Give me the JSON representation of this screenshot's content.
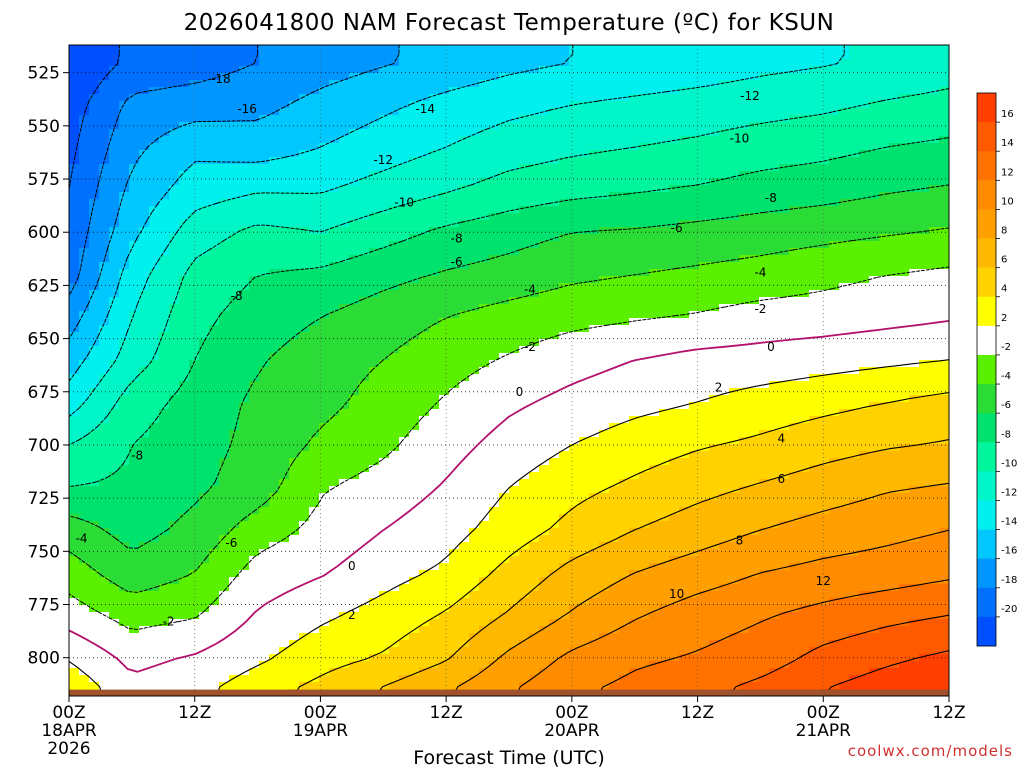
{
  "chart_data": {
    "type": "heatmap",
    "title": "2026041800 NAM Forecast Temperature (ºC) for KSUN",
    "xlabel": "Forecast Time (UTC)",
    "ylabel": "",
    "x_range_hours": [
      0,
      84
    ],
    "y_range_hpa": [
      512,
      818
    ],
    "y_ticks": [
      525,
      550,
      575,
      600,
      625,
      650,
      675,
      700,
      725,
      750,
      775,
      800
    ],
    "x_ticks": [
      {
        "hour": 0,
        "label": "00Z",
        "sub": "18APR",
        "sub2": "2026"
      },
      {
        "hour": 12,
        "label": "12Z",
        "sub": "",
        "sub2": ""
      },
      {
        "hour": 24,
        "label": "00Z",
        "sub": "19APR",
        "sub2": ""
      },
      {
        "hour": 36,
        "label": "12Z",
        "sub": "",
        "sub2": ""
      },
      {
        "hour": 48,
        "label": "00Z",
        "sub": "20APR",
        "sub2": ""
      },
      {
        "hour": 60,
        "label": "12Z",
        "sub": "",
        "sub2": ""
      },
      {
        "hour": 72,
        "label": "00Z",
        "sub": "21APR",
        "sub2": ""
      },
      {
        "hour": 84,
        "label": "12Z",
        "sub": "",
        "sub2": ""
      }
    ],
    "colorbar": {
      "labels": [
        "16",
        "14",
        "12",
        "10",
        "8",
        "6",
        "4",
        "2",
        "-2",
        "-4",
        "-6",
        "-8",
        "-10",
        "-12",
        "-14",
        "-16",
        "-18",
        "-20"
      ],
      "bins": [
        {
          "min": 16,
          "max": 18,
          "color": "#ff3f00"
        },
        {
          "min": 14,
          "max": 16,
          "color": "#ff5a00"
        },
        {
          "min": 12,
          "max": 14,
          "color": "#ff7200"
        },
        {
          "min": 10,
          "max": 12,
          "color": "#ff8c00"
        },
        {
          "min": 8,
          "max": 10,
          "color": "#ffa000"
        },
        {
          "min": 6,
          "max": 8,
          "color": "#ffb800"
        },
        {
          "min": 4,
          "max": 6,
          "color": "#ffd200"
        },
        {
          "min": 2,
          "max": 4,
          "color": "#ffff00"
        },
        {
          "min": -2,
          "max": 2,
          "color": "#ffffff"
        },
        {
          "min": -4,
          "max": -2,
          "color": "#5bf000"
        },
        {
          "min": -6,
          "max": -4,
          "color": "#2cdc36"
        },
        {
          "min": -8,
          "max": -6,
          "color": "#00e26e"
        },
        {
          "min": -10,
          "max": -8,
          "color": "#00f59c"
        },
        {
          "min": -12,
          "max": -10,
          "color": "#00f5c8"
        },
        {
          "min": -14,
          "max": -12,
          "color": "#00f0f0"
        },
        {
          "min": -16,
          "max": -14,
          "color": "#00c8ff"
        },
        {
          "min": -18,
          "max": -16,
          "color": "#0096ff"
        },
        {
          "min": -20,
          "max": -18,
          "color": "#0070ff"
        },
        {
          "min": -22,
          "max": -20,
          "color": "#0050ff"
        }
      ]
    },
    "surface_color": "#a0522d",
    "zero_contour_color": "#b4106e",
    "contour_labels": [
      {
        "v": "-18",
        "h": 14.5,
        "p": 528
      },
      {
        "v": "-16",
        "h": 17.0,
        "p": 542
      },
      {
        "v": "-14",
        "h": 34.0,
        "p": 542
      },
      {
        "v": "-12",
        "h": 30.0,
        "p": 566
      },
      {
        "v": "-12",
        "h": 65.0,
        "p": 536
      },
      {
        "v": "-10",
        "h": 32.0,
        "p": 586
      },
      {
        "v": "-10",
        "h": 64.0,
        "p": 556
      },
      {
        "v": "-8",
        "h": 37.0,
        "p": 603
      },
      {
        "v": "-8",
        "h": 67.0,
        "p": 584
      },
      {
        "v": "-8",
        "h": 16.0,
        "p": 630
      },
      {
        "v": "-8",
        "h": 6.5,
        "p": 705
      },
      {
        "v": "-6",
        "h": 37.0,
        "p": 614
      },
      {
        "v": "-6",
        "h": 58.0,
        "p": 598
      },
      {
        "v": "-6",
        "h": 15.5,
        "p": 746
      },
      {
        "v": "-4",
        "h": 44.0,
        "p": 627
      },
      {
        "v": "-4",
        "h": 66.0,
        "p": 619
      },
      {
        "v": "-4",
        "h": 1.2,
        "p": 744
      },
      {
        "v": "-2",
        "h": 44.0,
        "p": 654
      },
      {
        "v": "-2",
        "h": 66.0,
        "p": 636
      },
      {
        "v": "-2",
        "h": 9.5,
        "p": 783
      },
      {
        "v": "0",
        "h": 43.0,
        "p": 675
      },
      {
        "v": "0",
        "h": 67.0,
        "p": 654
      },
      {
        "v": "0",
        "h": 27.0,
        "p": 757
      },
      {
        "v": "2",
        "h": 62.0,
        "p": 673
      },
      {
        "v": "2",
        "h": 27.0,
        "p": 780
      },
      {
        "v": "4",
        "h": 68.0,
        "p": 697
      },
      {
        "v": "6",
        "h": 68.0,
        "p": 716
      },
      {
        "v": "8",
        "h": 64.0,
        "p": 745
      },
      {
        "v": "10",
        "h": 58.0,
        "p": 770
      },
      {
        "v": "12",
        "h": 72.0,
        "p": 764
      }
    ],
    "temperature_grid": {
      "hours": [
        0,
        6,
        12,
        18,
        24,
        30,
        36,
        42,
        48,
        54,
        60,
        66,
        72,
        78,
        84
      ],
      "levels": [
        520,
        540,
        560,
        580,
        600,
        620,
        640,
        660,
        680,
        700,
        720,
        740,
        760,
        780,
        800,
        815
      ],
      "values": [
        [
          -22,
          -19.5,
          -19,
          -18,
          -17,
          -16.2,
          -15.4,
          -14.6,
          -14,
          -13.6,
          -13.2,
          -12.6,
          -12.2,
          -11.6,
          -11
        ],
        [
          -21,
          -17.5,
          -17,
          -16.6,
          -15.4,
          -14.4,
          -13.4,
          -12.6,
          -12,
          -11.6,
          -11.2,
          -10.8,
          -10.4,
          -9.8,
          -9.4
        ],
        [
          -20.5,
          -16.5,
          -14.5,
          -15,
          -14,
          -13,
          -12,
          -11,
          -10.4,
          -10,
          -9.6,
          -9,
          -8.6,
          -8,
          -7.6
        ],
        [
          -20,
          -15.5,
          -13,
          -12.2,
          -12.2,
          -11.2,
          -10.2,
          -9.2,
          -8.6,
          -8.2,
          -7.8,
          -7.2,
          -6.8,
          -6.2,
          -5.8
        ],
        [
          -19.5,
          -14.5,
          -11,
          -9.5,
          -10,
          -8.8,
          -7.6,
          -6.8,
          -6,
          -5.8,
          -5.4,
          -5,
          -4.6,
          -4.2,
          -3.8
        ],
        [
          -19,
          -13,
          -9.4,
          -8,
          -7.6,
          -6.6,
          -5.8,
          -5.2,
          -4.4,
          -4,
          -3.6,
          -3.2,
          -2.6,
          -2,
          -1.6
        ],
        [
          -17,
          -12,
          -8.6,
          -7,
          -6,
          -5,
          -4,
          -3.2,
          -2.6,
          -2.2,
          -1.8,
          -1.2,
          -1,
          -0.6,
          -0.2
        ],
        [
          -15,
          -11,
          -8,
          -6.2,
          -5,
          -4,
          -2.8,
          -1.8,
          -0.8,
          0,
          0.6,
          0.8,
          1.2,
          1.6,
          2
        ],
        [
          -13,
          -9,
          -7.2,
          -5.6,
          -4.6,
          -3.2,
          -1.8,
          -0.4,
          0.6,
          1.4,
          2,
          2.8,
          3.4,
          4,
          4.6
        ],
        [
          -10,
          -8,
          -6.8,
          -5.4,
          -3.6,
          -2.4,
          -0.8,
          0.8,
          2,
          3,
          3.8,
          4.4,
          5.2,
          5.8,
          6.2
        ],
        [
          -8,
          -7.6,
          -6.4,
          -5,
          -2.2,
          -1.2,
          0.2,
          2,
          3.4,
          4.4,
          5.4,
          6.2,
          7,
          7.8,
          8.2
        ],
        [
          -5,
          -6.8,
          -5.4,
          -3,
          -1.4,
          0,
          1.2,
          3,
          4.6,
          6,
          7,
          8,
          8.8,
          9.4,
          10
        ],
        [
          -3,
          -5.2,
          -4,
          -1.2,
          -0.2,
          1.2,
          2.4,
          4.6,
          6.6,
          8,
          9,
          10,
          10.6,
          11,
          11.6
        ],
        [
          -1,
          -2.8,
          -2.2,
          0.2,
          1.6,
          2.8,
          4.2,
          6.2,
          8.2,
          9.8,
          11,
          11.8,
          12.6,
          13.4,
          14
        ],
        [
          1.8,
          -0.6,
          0.2,
          1.6,
          3.2,
          4.2,
          5.8,
          8.4,
          10.4,
          11.6,
          12.2,
          13,
          14.6,
          15.6,
          16.4
        ],
        [
          3.6,
          0.6,
          1.4,
          3.2,
          4.6,
          6.2,
          7.8,
          9.8,
          11.6,
          12.6,
          13.4,
          14.6,
          16,
          17,
          17.6
        ]
      ]
    }
  },
  "labels": {
    "title": "2026041800 NAM Forecast Temperature (ºC) for KSUN",
    "xlabel": "Forecast Time (UTC)",
    "credit": "coolwx.com/models"
  }
}
